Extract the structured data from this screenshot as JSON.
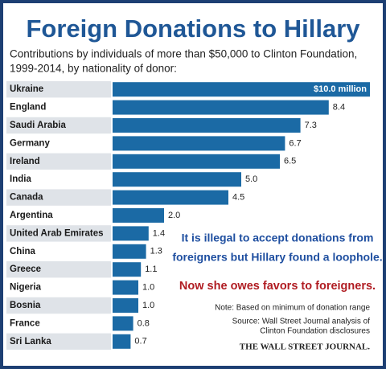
{
  "chart_data": {
    "type": "bar",
    "orientation": "horizontal",
    "title": "Foreign Donations to Hillary",
    "subtitle": [
      "Contributions by individuals of more than $50,000 to Clinton Foundation,",
      "1999-2014, by nationality of donor:"
    ],
    "categories": [
      "Ukraine",
      "England",
      "Saudi Arabia",
      "Germany",
      "Ireland",
      "India",
      "Canada",
      "Argentina",
      "United Arab Emirates",
      "China",
      "Greece",
      "Nigeria",
      "Bosnia",
      "France",
      "Sri Lanka"
    ],
    "values": [
      10.0,
      8.4,
      7.3,
      6.7,
      6.5,
      5.0,
      4.5,
      2.0,
      1.4,
      1.3,
      1.1,
      1.0,
      1.0,
      0.8,
      0.7
    ],
    "value_labels": [
      "$10.0 million",
      "8.4",
      "7.3",
      "6.7",
      "6.5",
      "5.0",
      "4.5",
      "2.0",
      "1.4",
      "1.3",
      "1.1",
      "1.0",
      "1.0",
      "0.8",
      "0.7"
    ],
    "color": "#1b6aa5",
    "annotations": {
      "loophole": [
        "It is illegal to accept donations from",
        "foreigners but Hillary found a loophole."
      ],
      "favors": "Now she owes favors to foreigners.",
      "note": "Note: Based on minimum of donation range",
      "source": [
        "Source: Wall Street Journal analysis of",
        "Clinton Foundation disclosures"
      ],
      "publisher": "THE WALL STREET JOURNAL."
    }
  }
}
